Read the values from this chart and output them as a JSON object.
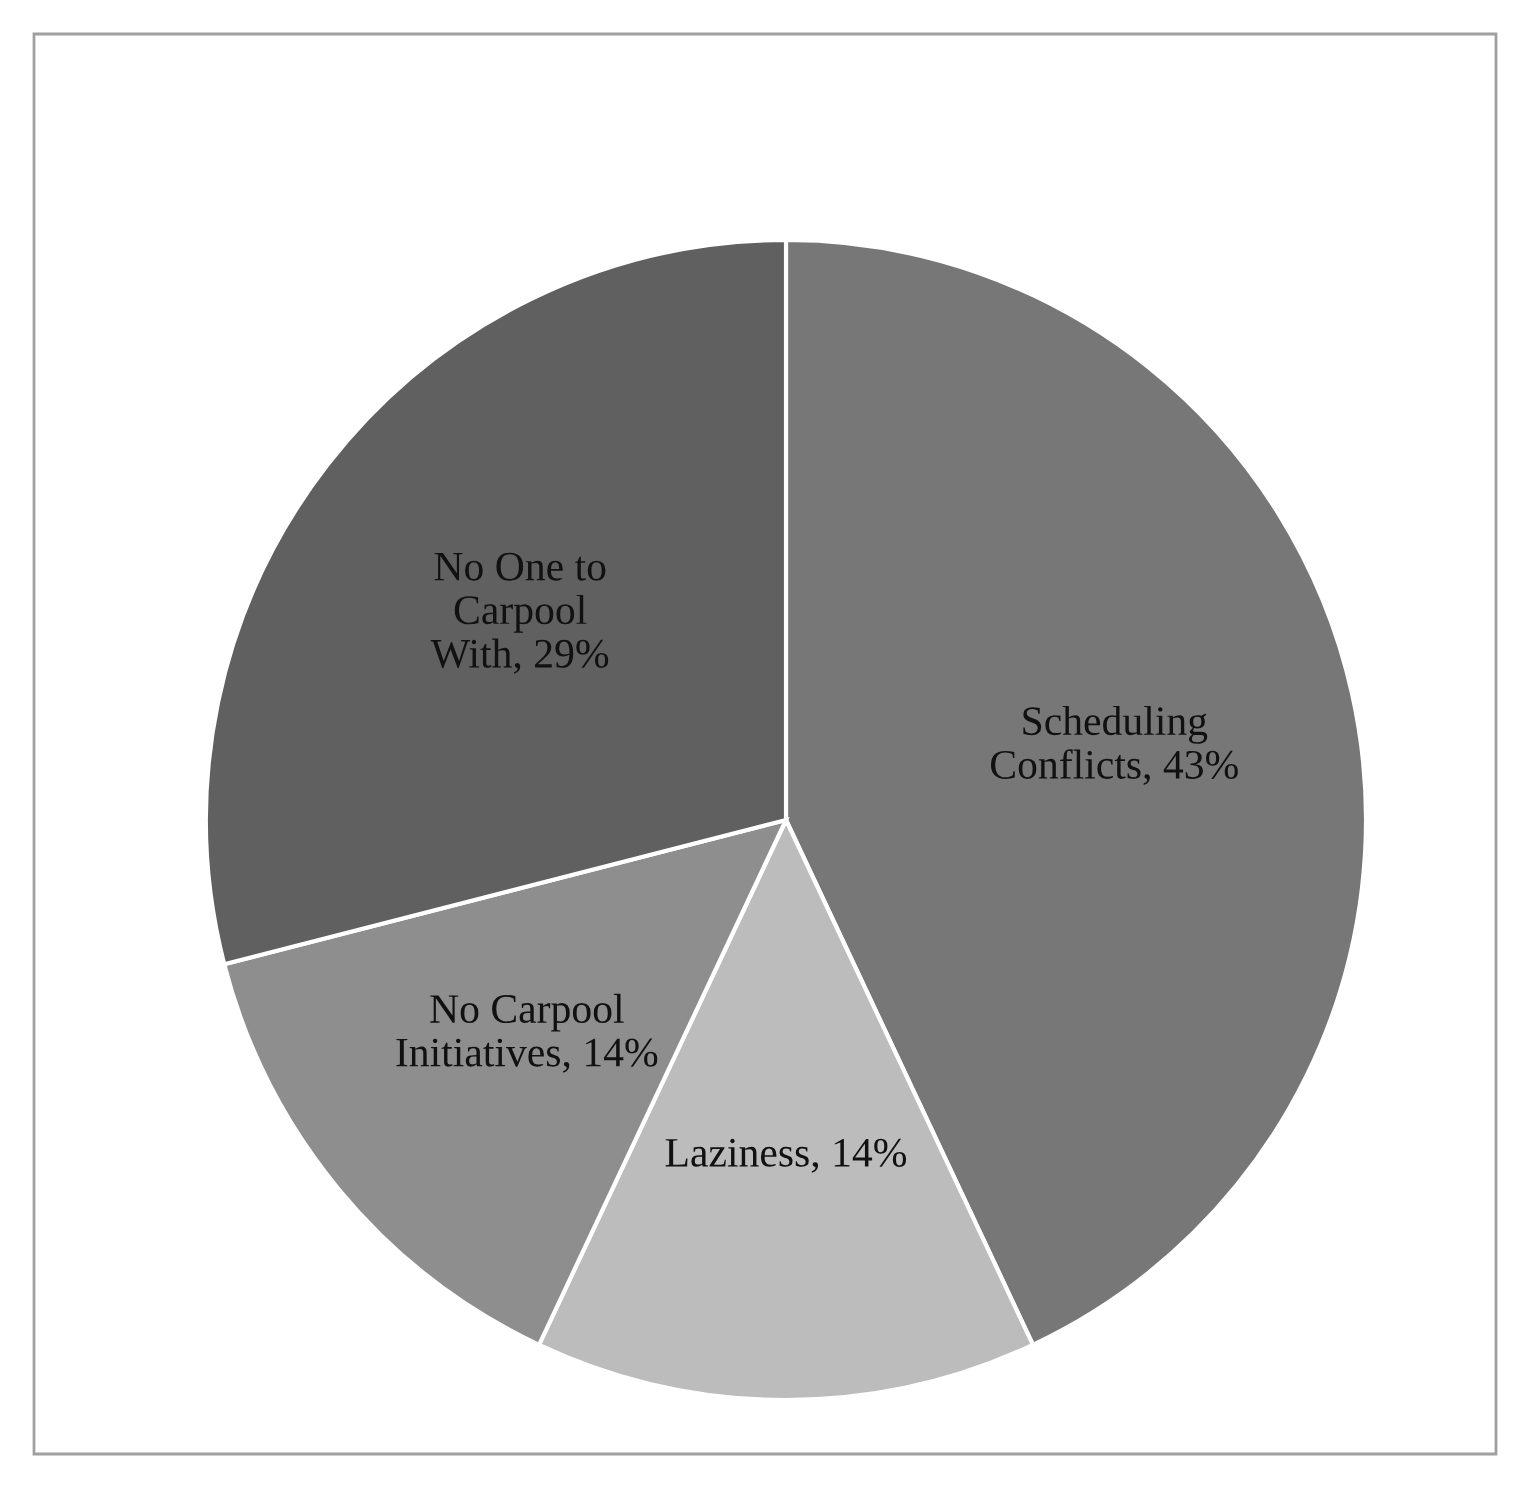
{
  "chart_data": {
    "type": "pie",
    "categories": [
      "Scheduling Conflicts",
      "Laziness",
      "No Carpool Initiatives",
      "No One to Carpool With"
    ],
    "values": [
      43,
      14,
      14,
      29
    ],
    "value_labels": [
      "43%",
      "14%",
      "14%",
      "29%"
    ],
    "colors": [
      "#777777",
      "#bcbcbc",
      "#8e8e8e",
      "#606060"
    ],
    "legend": false
  }
}
